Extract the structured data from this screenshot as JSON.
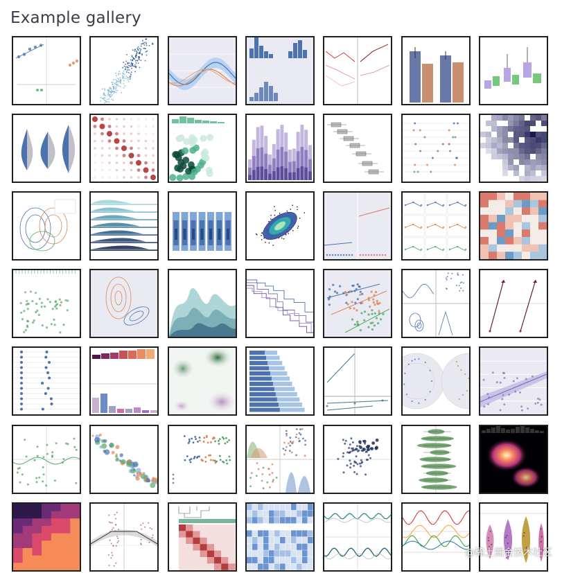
{
  "page": {
    "title": "Example gallery"
  },
  "watermark": "@稀土掘金技术社区",
  "thumbnails": [
    {
      "kind": "scatter-facets"
    },
    {
      "kind": "hexbin-density"
    },
    {
      "kind": "errorband-lines"
    },
    {
      "kind": "joint-hist"
    },
    {
      "kind": "multiline-facets"
    },
    {
      "kind": "grouped-barplot"
    },
    {
      "kind": "grouped-boxplot"
    },
    {
      "kind": "split-violins"
    },
    {
      "kind": "dot-heatmap"
    },
    {
      "kind": "hexbin-marginals"
    },
    {
      "kind": "stacked-hist"
    },
    {
      "kind": "horizontal-boxplot"
    },
    {
      "kind": "pointplot-strip"
    },
    {
      "kind": "hist2d-dark"
    },
    {
      "kind": "kde-contours"
    },
    {
      "kind": "ridgeline"
    },
    {
      "kind": "letter-value-plot"
    },
    {
      "kind": "scatter-density-ellipse"
    },
    {
      "kind": "logistic-regression"
    },
    {
      "kind": "pointplot-facets"
    },
    {
      "kind": "color-heatmap"
    },
    {
      "kind": "scatter-rugs"
    },
    {
      "kind": "kde-orange-blue"
    },
    {
      "kind": "stacked-kde"
    },
    {
      "kind": "step-lines"
    },
    {
      "kind": "regression-3groups"
    },
    {
      "kind": "pairgrid-kde"
    },
    {
      "kind": "slope-arrows"
    },
    {
      "kind": "dot-columns"
    },
    {
      "kind": "palette-bars"
    },
    {
      "kind": "soft-kde-green"
    },
    {
      "kind": "horizontal-barplot"
    },
    {
      "kind": "residual-lines"
    },
    {
      "kind": "polar-facets"
    },
    {
      "kind": "regression-purple"
    },
    {
      "kind": "lowess-scatter"
    },
    {
      "kind": "bubble-scatter"
    },
    {
      "kind": "beeswarm"
    },
    {
      "kind": "pairplot-mini"
    },
    {
      "kind": "strip-bubble-navy"
    },
    {
      "kind": "horizontal-violins-green"
    },
    {
      "kind": "kde-magma"
    },
    {
      "kind": "annotated-heatmap"
    },
    {
      "kind": "wide-regression"
    },
    {
      "kind": "clustermap"
    },
    {
      "kind": "faceted-heatmap"
    },
    {
      "kind": "timeseries-facets"
    },
    {
      "kind": "multicolor-lines"
    },
    {
      "kind": "violin-swarm"
    }
  ]
}
